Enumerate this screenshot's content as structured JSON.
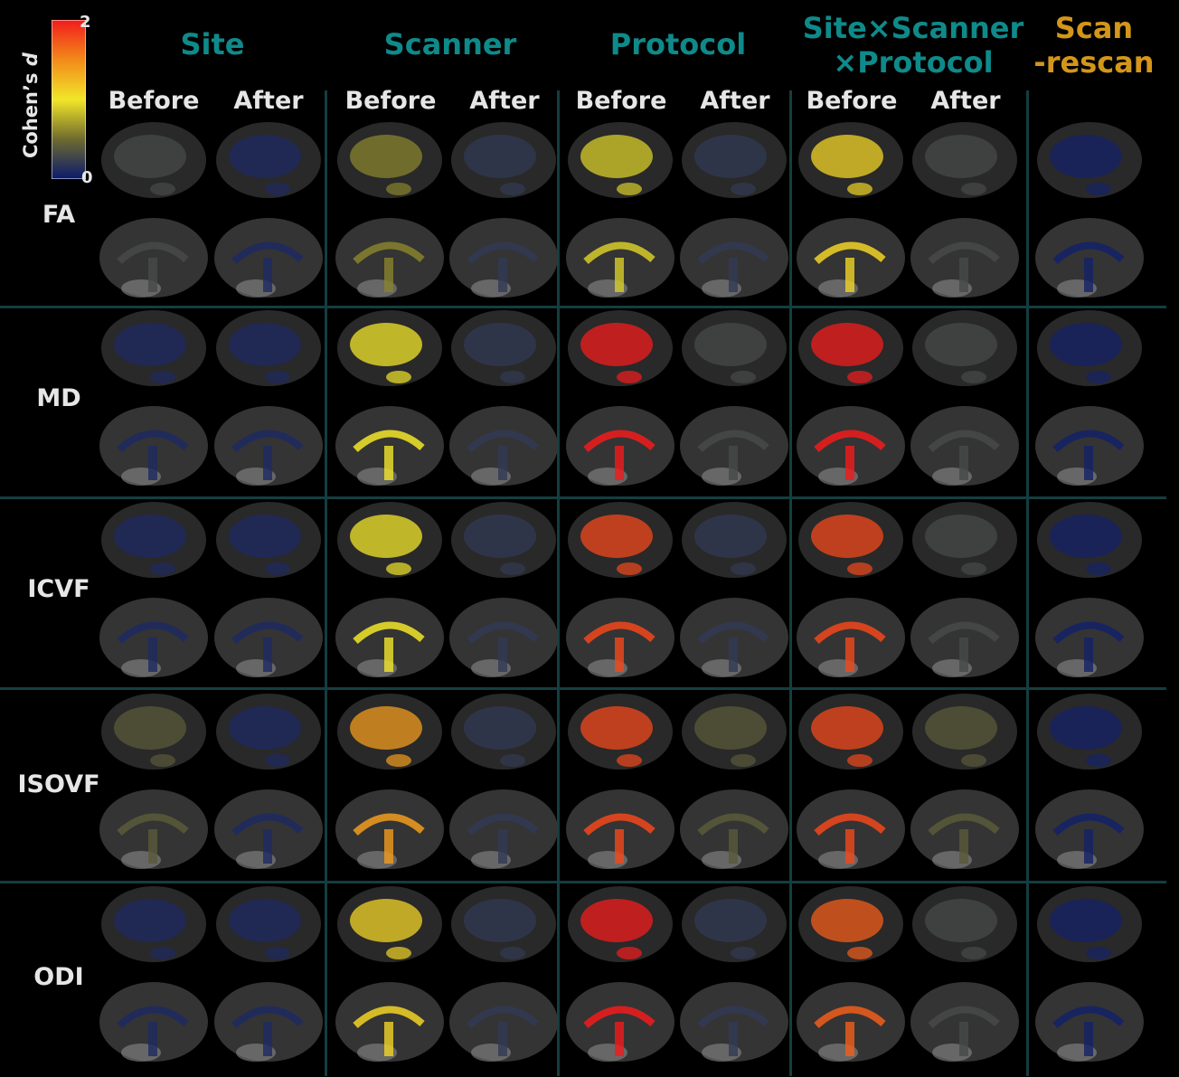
{
  "colorbar": {
    "label": "Cohen’s",
    "label_var": "d",
    "max": "2",
    "min": "0",
    "colors": [
      "#0a1a6e",
      "#6e6a2e",
      "#f2e629",
      "#f28a1a",
      "#f21c1c"
    ]
  },
  "groups": [
    {
      "title": "Site",
      "title2": "",
      "color": "#0f8a8a",
      "subs": [
        "Before",
        "After"
      ]
    },
    {
      "title": "Scanner",
      "title2": "",
      "color": "#0f8a8a",
      "subs": [
        "Before",
        "After"
      ]
    },
    {
      "title": "Protocol",
      "title2": "",
      "color": "#0f8a8a",
      "subs": [
        "Before",
        "After"
      ]
    },
    {
      "title": "Site×Scanner",
      "title2": "×Protocol",
      "color": "#0f8a8a",
      "subs": [
        "Before",
        "After"
      ]
    },
    {
      "title": "Scan",
      "title2": "-rescan",
      "color": "#d4961a",
      "subs": []
    }
  ],
  "rows": [
    "FA",
    "MD",
    "ICVF",
    "ISOVF",
    "ODI"
  ],
  "effect_levels": [
    [
      0.3,
      0.1,
      0.6,
      0.2,
      0.9,
      0.2,
      1.1,
      0.3,
      0.05
    ],
    [
      0.1,
      0.1,
      1.0,
      0.2,
      2.0,
      0.3,
      2.0,
      0.3,
      0.05
    ],
    [
      0.1,
      0.1,
      1.0,
      0.2,
      1.8,
      0.2,
      1.8,
      0.3,
      0.05
    ],
    [
      0.4,
      0.1,
      1.4,
      0.2,
      1.8,
      0.4,
      1.8,
      0.4,
      0.05
    ],
    [
      0.1,
      0.1,
      1.1,
      0.2,
      2.0,
      0.2,
      1.7,
      0.3,
      0.05
    ]
  ]
}
